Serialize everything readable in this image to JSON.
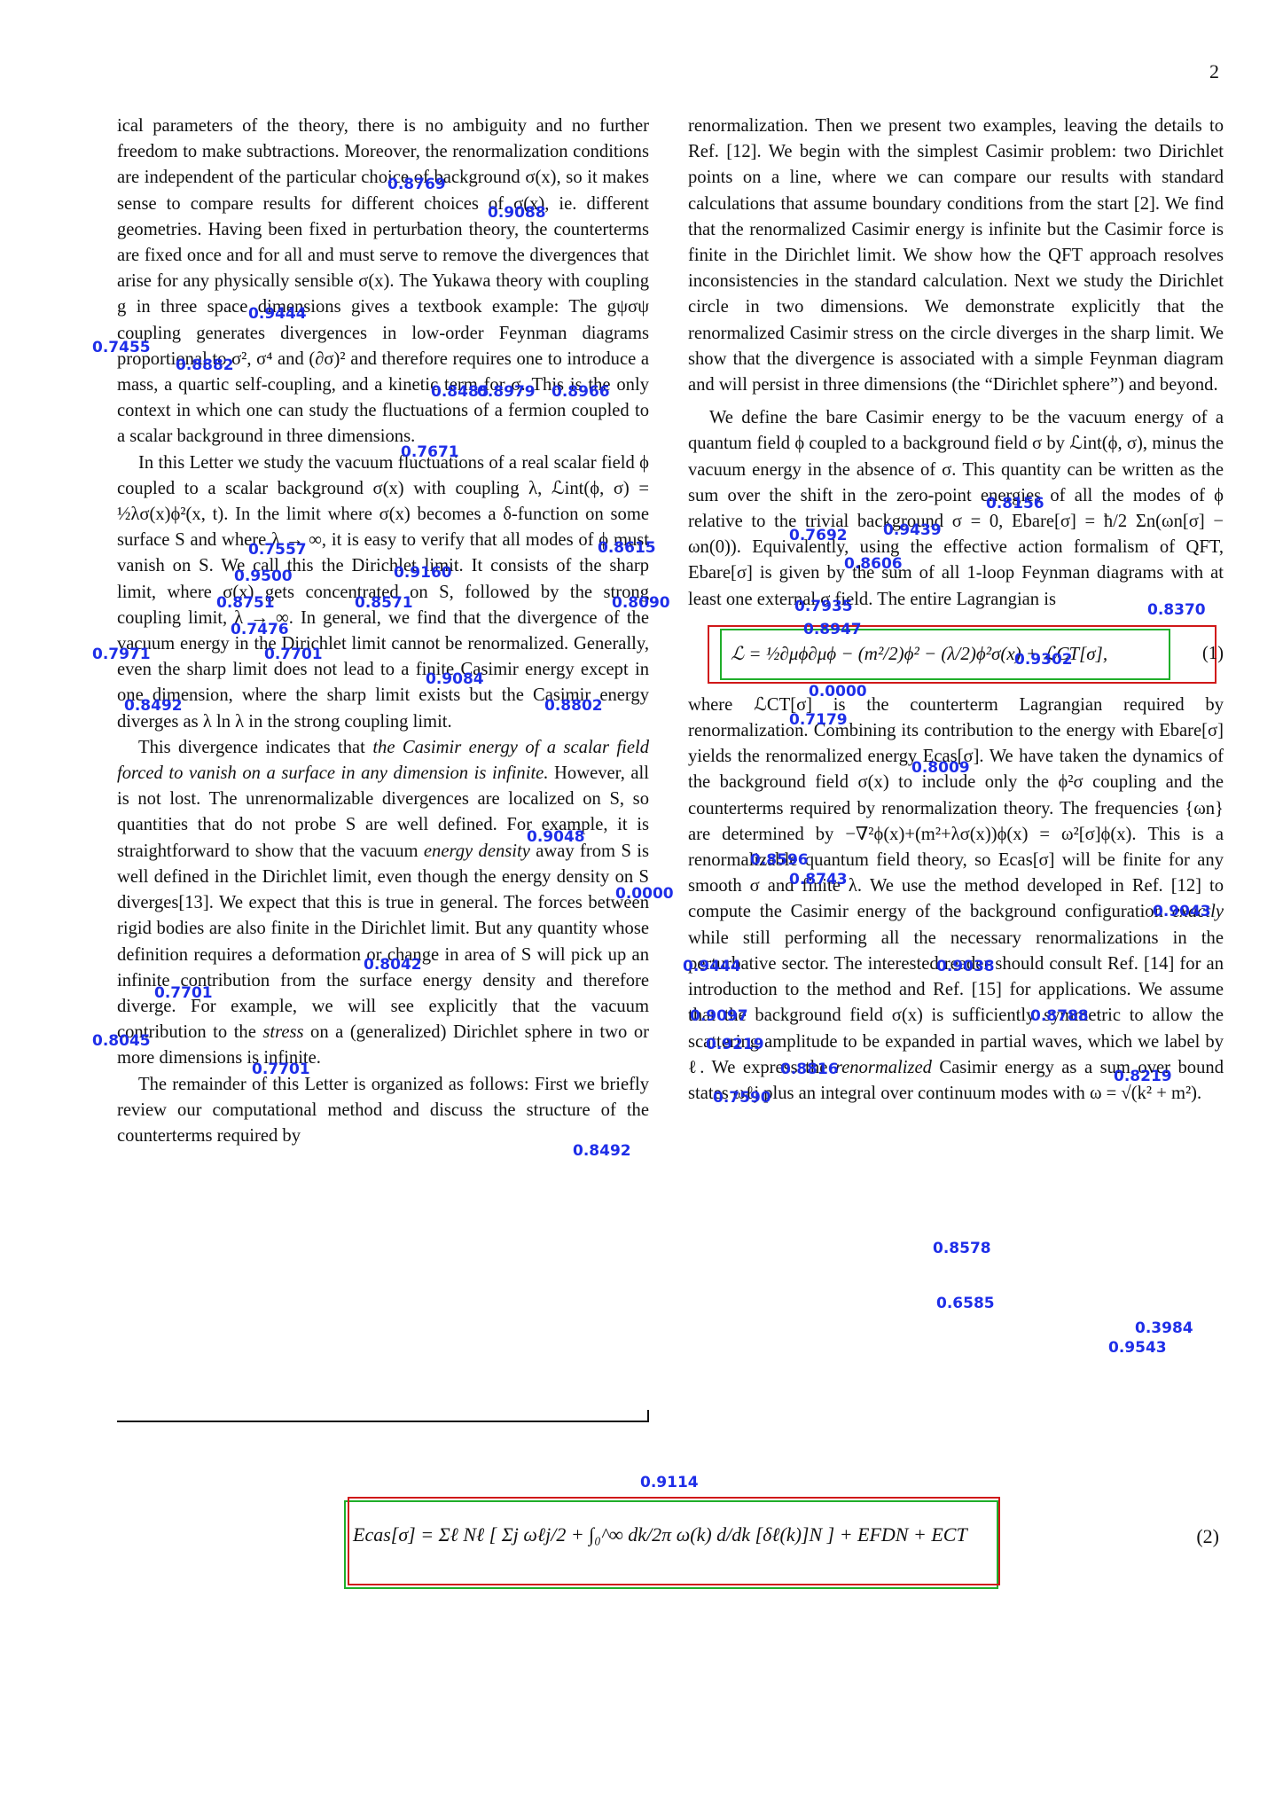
{
  "page_number": "2",
  "left_column": {
    "p1": "ical parameters of the theory, there is no ambiguity and no further freedom to make subtractions. Moreover, the renormalization conditions are independent of the particular choice of background σ(x), so it makes sense to compare results for different choices of σ(x), ie. different geometries. Having been fixed in perturbation theory, the counterterms are fixed once and for all and must serve to remove the divergences that arise for any physically sensible σ(x). The Yukawa theory with coupling g in three space dimensions gives a textbook example: The gψσψ coupling generates divergences in low-order Feynman diagrams proportional to σ², σ⁴ and (∂σ)² and therefore requires one to introduce a mass, a quartic self-coupling, and a kinetic term for σ. This is the only context in which one can study the fluctuations of a fermion coupled to a scalar background in three dimensions.",
    "p2": "In this Letter we study the vacuum fluctuations of a real scalar field ϕ coupled to a scalar background σ(x) with coupling λ, ℒint(ϕ, σ) = ½λσ(x)ϕ²(x, t). In the limit where σ(x) becomes a δ-function on some surface S and where λ → ∞, it is easy to verify that all modes of ϕ must vanish on S. We call this the Dirichlet limit. It consists of the sharp limit, where σ(x) gets concentrated on S, followed by the strong coupling limit, λ → ∞. In general, we find that the divergence of the vacuum energy in the Dirichlet limit cannot be renormalized. Generally, even the sharp limit does not lead to a finite Casimir energy except in one dimension, where the sharp limit exists but the Casimir energy diverges as λ ln λ in the strong coupling limit.",
    "p3_a": "This divergence indicates that ",
    "p3_em": "the Casimir energy of a scalar field forced to vanish on a surface in any dimension is infinite.",
    "p3_b": " However, all is not lost. The unrenormalizable divergences are localized on S, so quantities that do not probe S are well defined. For example, it is straightforward to show that the vacuum ",
    "p3_em2": "energy density",
    "p3_c": " away from S is well defined in the Dirichlet limit, even though the energy density on S diverges[13]. We expect that this is true in general. The forces between rigid bodies are also finite in the Dirichlet limit. But any quantity whose definition requires a deformation or change in area of S will pick up an infinite contribution from the surface energy density and therefore diverge. For example, we will see explicitly that the vacuum contribution to the ",
    "p3_em3": "stress",
    "p3_d": " on a (generalized) Dirichlet sphere in two or more dimensions is infinite.",
    "p4": "The remainder of this Letter is organized as follows: First we briefly review our computational method and discuss the structure of the counterterms required by"
  },
  "right_column": {
    "p1": "renormalization. Then we present two examples, leaving the details to Ref. [12]. We begin with the simplest Casimir problem: two Dirichlet points on a line, where we can compare our results with standard calculations that assume boundary conditions from the start [2]. We find that the renormalized Casimir energy is infinite but the Casimir force is finite in the Dirichlet limit. We show how the QFT approach resolves inconsistencies in the standard calculation. Next we study the Dirichlet circle in two dimensions. We demonstrate explicitly that the renormalized Casimir stress on the circle diverges in the sharp limit. We show that the divergence is associated with a simple Feynman diagram and will persist in three dimensions (the “Dirichlet sphere”) and beyond.",
    "p2": "We define the bare Casimir energy to be the vacuum energy of a quantum field ϕ coupled to a background field σ by ℒint(ϕ, σ), minus the vacuum energy in the absence of σ. This quantity can be written as the sum over the shift in the zero-point energies of all the modes of ϕ relative to the trivial background σ = 0, Ebare[σ] = ħ/2 Σn(ωn[σ] − ωn(0)). Equivalently, using the effective action formalism of QFT, Ebare[σ] is given by the sum of all 1-loop Feynman diagrams with at least one external σ field. The entire Lagrangian is",
    "eq1": "ℒ = ½∂μϕ∂μϕ − (m²/2)ϕ² − (λ/2)ϕ²σ(x) + ℒCT[σ],",
    "eq1_num": "(1)",
    "p3_a": "where ℒCT[σ] is the counterterm Lagrangian required by renormalization. Combining its contribution to the energy with Ebare[σ] yields the renormalized energy Ecas[σ]. We have taken the dynamics of the background field σ(x) to include only the ϕ²σ coupling and the counterterms required by renormalization theory. The frequencies {ωn} are determined by −∇²ϕ(x)+(m²+λσ(x))ϕ(x) = ω²[σ]ϕ(x). This is a renormalizable quantum field theory, so Ecas[σ] will be finite for any smooth σ and finite λ. We use the method developed in Ref. [12] to compute the Casimir energy of the background configuration ",
    "p3_em": "exactly",
    "p3_b": " while still performing all the necessary renormalizations in the perturbative sector. The interested reader should consult Ref. [14] for an introduction to the method and Ref. [15] for applications. We assume that the background field σ(x) is sufficiently symmetric to allow the scattering amplitude to be expanded in partial waves, which we label by ℓ. We express the ",
    "p3_em2": "renormalized",
    "p3_c": " Casimir energy as a sum over bound states ωℓj plus an integral over continuum modes with ω = √(k² + m²)."
  },
  "eq2": {
    "formula": "Ecas[σ] = Σℓ Nℓ [ Σj ωℓj/2 + ∫₀^∞ dk/2π ω(k) d/dk [δℓ(k)]N ] + EFDN + ECT",
    "number": "(2)"
  },
  "scores": {
    "s1": "0.8769",
    "s2": "0.9088",
    "s3": "0.9444",
    "s4": "0.7455",
    "s5": "0.8882",
    "s6": "0.8485",
    "s7": "0.8979",
    "s8": "0.8966",
    "s9": "0.7671",
    "s10": "0.7557",
    "s11": "0.8615",
    "s12": "0.9500",
    "s13": "0.9160",
    "s14": "0.8751",
    "s15": "0.8571",
    "s16": "0.8090",
    "s17": "0.7476",
    "s18": "0.7971",
    "s19": "0.7701",
    "s20": "0.9084",
    "s21": "0.8492",
    "s22": "0.8802",
    "s23": "0.9048",
    "s24": "0.0000",
    "s25": "0.8042",
    "s26": "0.7701",
    "s27": "0.8045",
    "s28": "0.7701",
    "s29": "0.8492",
    "r1": "0.8156",
    "r2": "0.7692",
    "r3": "0.9439",
    "r4": "0.8606",
    "r5": "0.7935",
    "r6": "0.8370",
    "r7": "0.8947",
    "r8": "0.9302",
    "r9": "0.0000",
    "r10": "0.7179",
    "r11": "0.8009",
    "r12": "0.8596",
    "r13": "0.8743",
    "r14": "0.9043",
    "r15": "0.9444",
    "r16": "0.9038",
    "r17": "0.9097",
    "r18": "0.8788",
    "r19": "0.9219",
    "r20": "0.8816",
    "r21": "0.8219",
    "r22": "0.7590",
    "r23": "0.8578",
    "r24": "0.6585",
    "r25": "0.3984",
    "r26": "0.9543",
    "e2": "0.9114"
  },
  "colors": {
    "detect_box": "#d01818",
    "detect_box_alt": "#1fae2a",
    "score_text": "#1e2ee8"
  }
}
